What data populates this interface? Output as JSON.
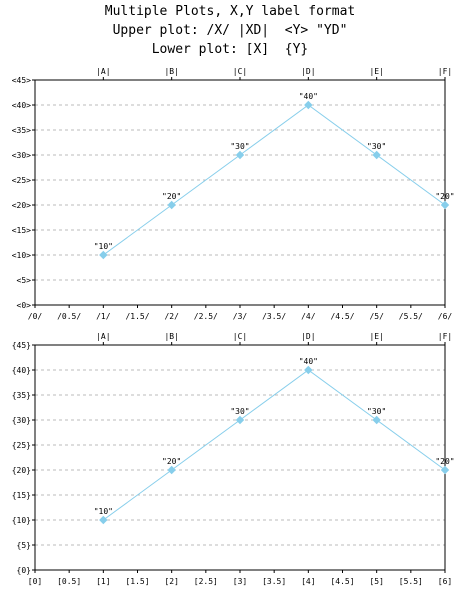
{
  "titles": {
    "line1": "Multiple Plots, X,Y label format",
    "line2": "Upper plot: /X/ |XD|  <Y> \"YD\"",
    "line3": "Lower plot: [X]  {Y}"
  },
  "colors": {
    "series": "#87ceeb",
    "grid": "#bbbbbb",
    "axis": "#000000",
    "background": "#ffffff"
  },
  "chart_data": [
    {
      "type": "line",
      "name": "upper",
      "x": [
        1,
        2,
        3,
        4,
        5,
        6
      ],
      "y": [
        10,
        20,
        30,
        40,
        30,
        20
      ],
      "xlim": [
        0,
        6
      ],
      "ylim": [
        0,
        45
      ],
      "grid": true,
      "x_ticks": [
        0,
        0.5,
        1,
        1.5,
        2,
        2.5,
        3,
        3.5,
        4,
        4.5,
        5,
        5.5,
        6
      ],
      "x_tick_labels": [
        "/0/",
        "/0.5/",
        "/1/",
        "/1.5/",
        "/2/",
        "/2.5/",
        "/3/",
        "/3.5/",
        "/4/",
        "/4.5/",
        "/5/",
        "/5.5/",
        "/6/"
      ],
      "y_ticks": [
        0,
        5,
        10,
        15,
        20,
        25,
        30,
        35,
        40,
        45
      ],
      "y_tick_labels": [
        "<0>",
        "<5>",
        "<10>",
        "<15>",
        "<20>",
        "<25>",
        "<30>",
        "<35>",
        "<40>",
        "<45>"
      ],
      "top_labels": [
        "|A|",
        "|B|",
        "|C|",
        "|D|",
        "|E|",
        "|F|"
      ],
      "data_labels": [
        "\"10\"",
        "\"20\"",
        "\"30\"",
        "\"40\"",
        "\"30\"",
        "\"20\""
      ]
    },
    {
      "type": "line",
      "name": "lower",
      "x": [
        1,
        2,
        3,
        4,
        5,
        6
      ],
      "y": [
        10,
        20,
        30,
        40,
        30,
        20
      ],
      "xlim": [
        0,
        6
      ],
      "ylim": [
        0,
        45
      ],
      "grid": true,
      "x_ticks": [
        0,
        0.5,
        1,
        1.5,
        2,
        2.5,
        3,
        3.5,
        4,
        4.5,
        5,
        5.5,
        6
      ],
      "x_tick_labels": [
        "[0]",
        "[0.5]",
        "[1]",
        "[1.5]",
        "[2]",
        "[2.5]",
        "[3]",
        "[3.5]",
        "[4]",
        "[4.5]",
        "[5]",
        "[5.5]",
        "[6]"
      ],
      "y_ticks": [
        0,
        5,
        10,
        15,
        20,
        25,
        30,
        35,
        40,
        45
      ],
      "y_tick_labels": [
        "{0}",
        "{5}",
        "{10}",
        "{15}",
        "{20}",
        "{25}",
        "{30}",
        "{35}",
        "{40}",
        "{45}"
      ],
      "top_labels": [
        "|A|",
        "|B|",
        "|C|",
        "|D|",
        "|E|",
        "|F|"
      ],
      "data_labels": [
        "\"10\"",
        "\"20\"",
        "\"30\"",
        "\"40\"",
        "\"30\"",
        "\"20\""
      ]
    }
  ]
}
